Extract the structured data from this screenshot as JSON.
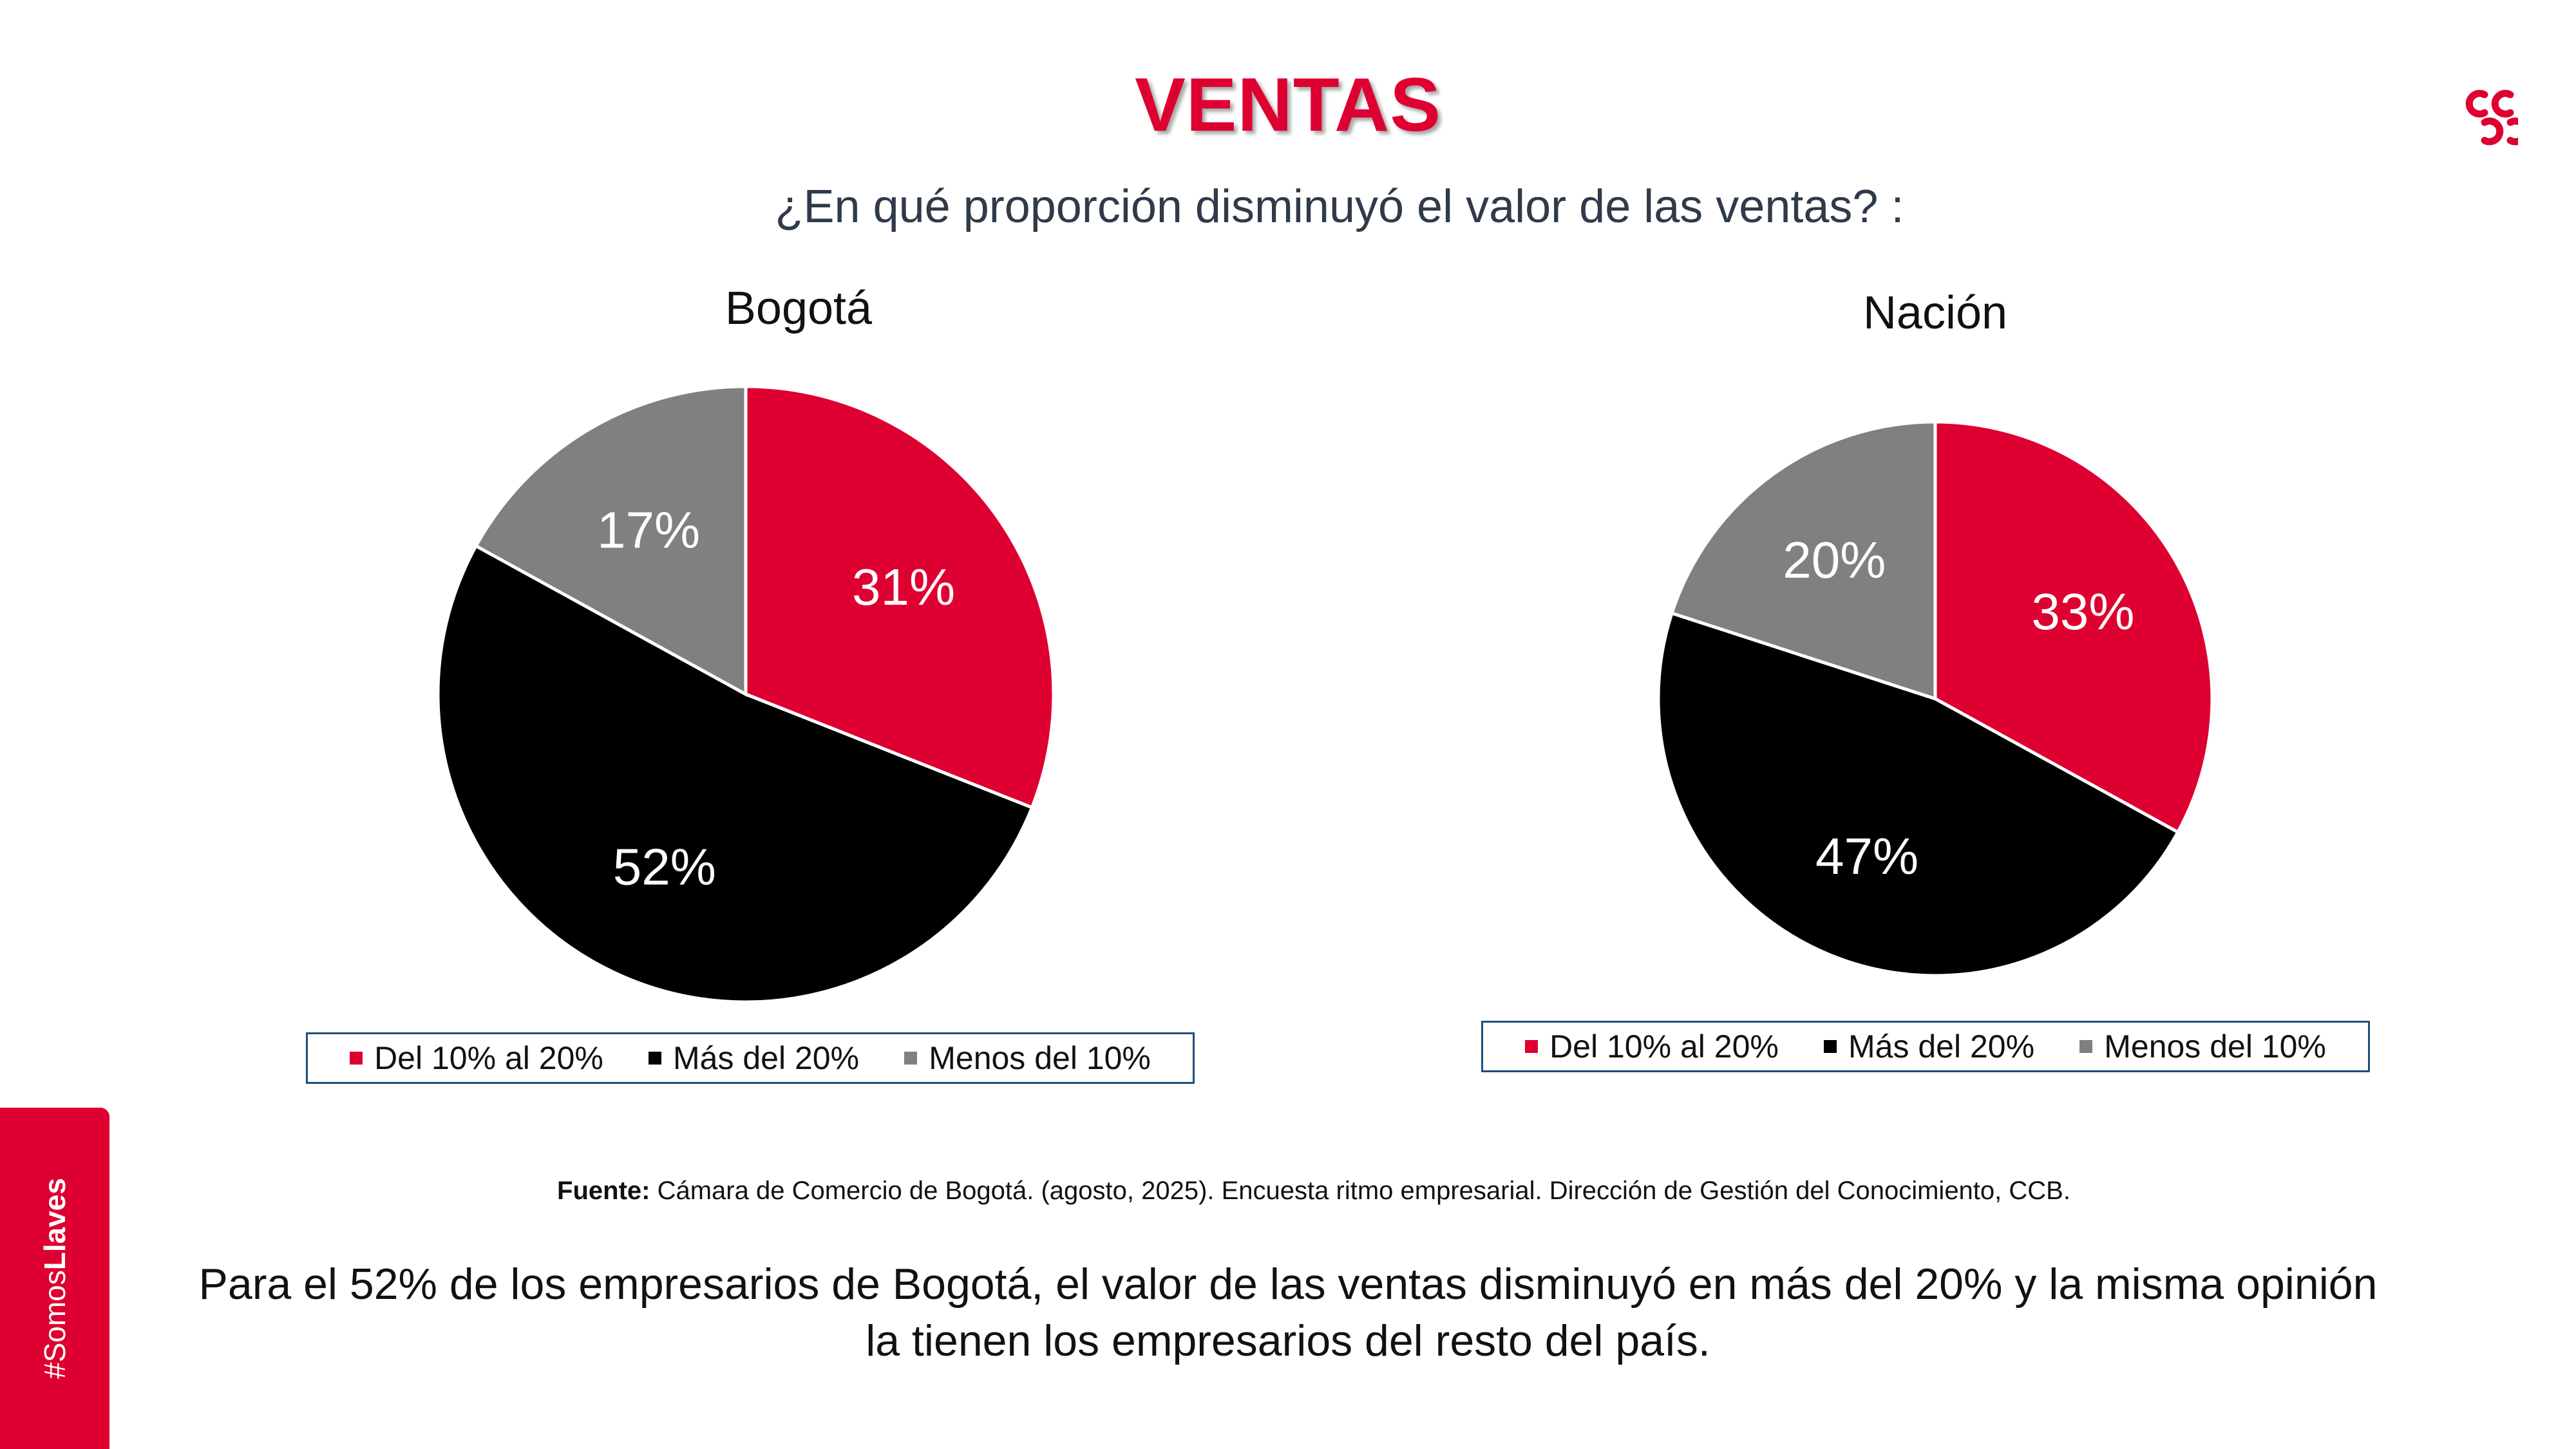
{
  "page": {
    "title": "VENTAS",
    "subtitle": "¿En qué proporción disminuyó el valor de las ventas? :",
    "source_label": "Fuente:",
    "source_text": " Cámara de Comercio de Bogotá. (agosto, 2025). Encuesta ritmo empresarial. Dirección de Gestión del Conocimiento, CCB.",
    "conclusion": "Para el  52% de los empresarios de Bogotá, el valor de las ventas disminuyó en más del 20% y la misma opinión la tienen los empresarios del resto del país.",
    "hashtag_prefix": "#Somos",
    "hashtag_bold": "Llaves",
    "brand_color": "#de0031",
    "logo_icon": "ccb-logo-icon"
  },
  "chart_data": [
    {
      "type": "pie",
      "title": "Bogotá",
      "categories": [
        "Del 10% al 20%",
        "Más del 20%",
        "Menos del 10%"
      ],
      "values": [
        31,
        52,
        17
      ],
      "labels": [
        "31%",
        "52%",
        "17%"
      ],
      "colors": [
        "#de0031",
        "#000000",
        "#808080"
      ],
      "legend": "bottom"
    },
    {
      "type": "pie",
      "title": "Nación",
      "categories": [
        "Del 10% al 20%",
        "Más del 20%",
        "Menos del 10%"
      ],
      "values": [
        33,
        47,
        20
      ],
      "labels": [
        "33%",
        "47%",
        "20%"
      ],
      "colors": [
        "#de0031",
        "#000000",
        "#808080"
      ],
      "legend": "bottom"
    }
  ]
}
